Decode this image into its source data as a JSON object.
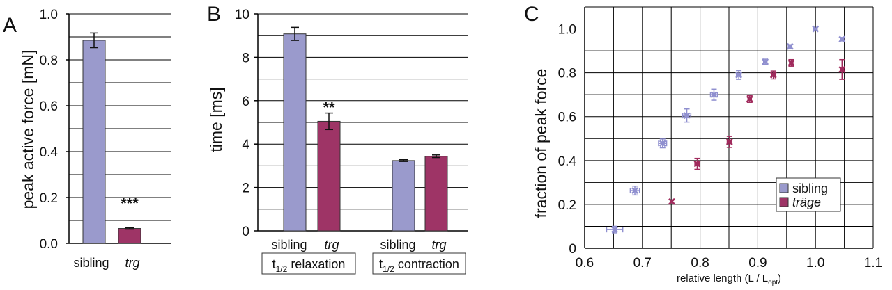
{
  "colors": {
    "sibling": "#9a9acc",
    "trg": "#9e3466",
    "sibling_marker": "#8f8fcf",
    "trg_marker": "#a02a5c",
    "grid": "#000000"
  },
  "chart_data": [
    {
      "type": "bar",
      "panel": "A",
      "ylabel": "peak active force [mN]",
      "ylim": [
        0,
        1.0
      ],
      "yticks": [
        "0.0",
        "0.2",
        "0.4",
        "0.6",
        "0.8",
        "1.0"
      ],
      "categories": [
        "sibling",
        "trg"
      ],
      "values": [
        0.885,
        0.065
      ],
      "errors": [
        0.032,
        0.003
      ],
      "annotations": [
        {
          "category": "trg",
          "text": "***"
        }
      ],
      "grid": "horizontal"
    },
    {
      "type": "bar",
      "panel": "B",
      "ylabel": "time [ms]",
      "ylim": [
        0,
        10
      ],
      "yticks": [
        "0",
        "2",
        "4",
        "6",
        "8",
        "10"
      ],
      "groups": [
        {
          "label": "t1/2 relaxation",
          "label_main": "t",
          "label_sub": "1/2",
          "label_rest": " relaxation",
          "categories": [
            "sibling",
            "trg"
          ],
          "values": [
            9.08,
            5.05
          ],
          "errors": [
            0.3,
            0.38
          ]
        },
        {
          "label": "t1/2 contraction",
          "label_main": "t",
          "label_sub": "1/2",
          "label_rest": " contraction",
          "categories": [
            "sibling",
            "trg"
          ],
          "values": [
            3.24,
            3.44
          ],
          "errors": [
            0.04,
            0.06
          ]
        }
      ],
      "annotations": [
        {
          "group": 0,
          "category": "trg",
          "text": "**"
        }
      ],
      "grid": "horizontal"
    },
    {
      "type": "scatter",
      "panel": "C",
      "xlabel": "relative length (L / L",
      "xlabel_sub": "opt",
      "xlabel_end": ")",
      "ylabel": "fraction of peak force",
      "xlim": [
        0.6,
        1.1
      ],
      "ylim": [
        0,
        1.1
      ],
      "xticks": [
        "0.6",
        "0.7",
        "0.8",
        "0.9",
        "1.0",
        "1.1"
      ],
      "yticks": [
        "0",
        "0.2",
        "0.4",
        "0.6",
        "0.8",
        "1.0"
      ],
      "grid": "both",
      "legend": "bottom-right",
      "series": [
        {
          "name": "sibling",
          "points": [
            {
              "x": 0.652,
              "y": 0.085,
              "xerr": 0.014,
              "yerr": 0.015
            },
            {
              "x": 0.687,
              "y": 0.263,
              "xerr": 0.008,
              "yerr": 0.02
            },
            {
              "x": 0.735,
              "y": 0.478,
              "xerr": 0.007,
              "yerr": 0.02
            },
            {
              "x": 0.777,
              "y": 0.605,
              "xerr": 0.007,
              "yerr": 0.03
            },
            {
              "x": 0.824,
              "y": 0.7,
              "xerr": 0.006,
              "yerr": 0.025
            },
            {
              "x": 0.867,
              "y": 0.79,
              "xerr": 0.004,
              "yerr": 0.02
            },
            {
              "x": 0.913,
              "y": 0.85,
              "xerr": 0.003,
              "yerr": 0.012
            },
            {
              "x": 0.956,
              "y": 0.92,
              "xerr": 0.003,
              "yerr": 0.008
            },
            {
              "x": 1.0,
              "y": 1.0,
              "xerr": 0.003,
              "yerr": 0.0
            },
            {
              "x": 1.046,
              "y": 0.953,
              "xerr": 0.003,
              "yerr": 0.008
            }
          ]
        },
        {
          "name": "träge",
          "points": [
            {
              "x": 0.751,
              "y": 0.213,
              "xerr": 0.0,
              "yerr": 0.0
            },
            {
              "x": 0.795,
              "y": 0.385,
              "xerr": 0.004,
              "yerr": 0.025
            },
            {
              "x": 0.851,
              "y": 0.485,
              "xerr": 0.004,
              "yerr": 0.025
            },
            {
              "x": 0.886,
              "y": 0.68,
              "xerr": 0.003,
              "yerr": 0.015
            },
            {
              "x": 0.927,
              "y": 0.79,
              "xerr": 0.003,
              "yerr": 0.018
            },
            {
              "x": 0.958,
              "y": 0.845,
              "xerr": 0.003,
              "yerr": 0.015
            },
            {
              "x": 1.046,
              "y": 0.815,
              "xerr": 0.003,
              "yerr": 0.045
            }
          ]
        }
      ]
    }
  ]
}
